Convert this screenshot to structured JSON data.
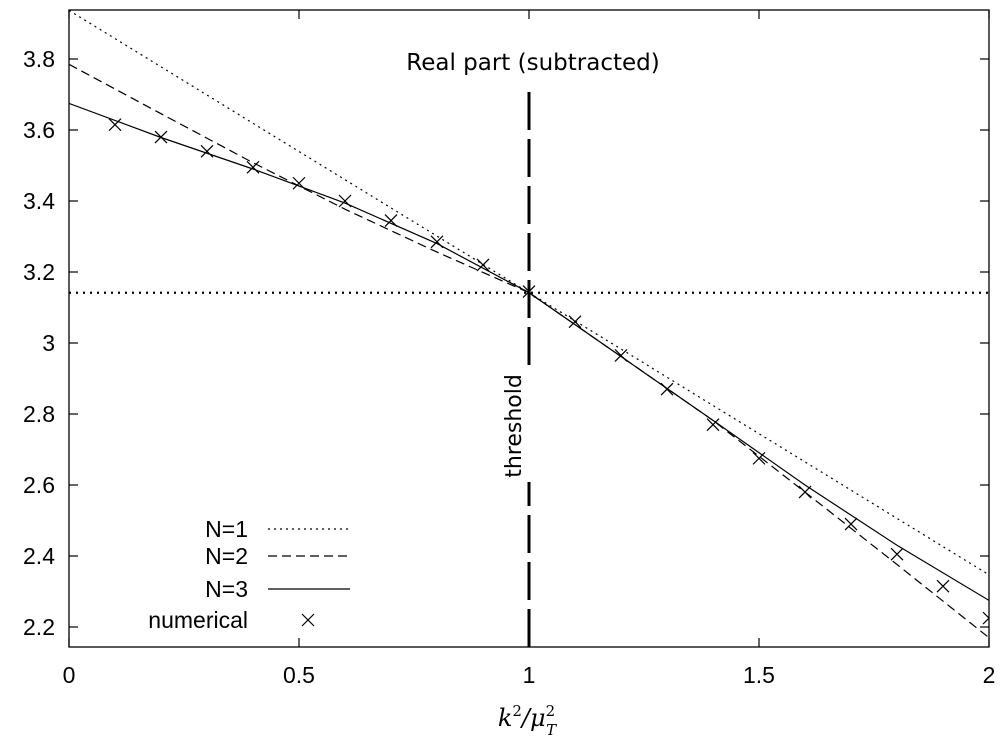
{
  "chart_data": {
    "type": "line",
    "title": "Real part (subtracted)",
    "xlabel": "k²/μ²_T",
    "ylabel": "",
    "xlim": [
      0,
      2
    ],
    "ylim": [
      2.15,
      3.95
    ],
    "xticks": [
      0,
      0.5,
      1,
      1.5,
      2
    ],
    "xtick_labels": [
      "0",
      "0.5",
      "1",
      "1.5",
      "2"
    ],
    "yticks": [
      2.2,
      2.4,
      2.6,
      2.8,
      3.0,
      3.2,
      3.4,
      3.6,
      3.8
    ],
    "ytick_labels": [
      "2.2",
      "2.4",
      "2.6",
      "2.8",
      "3",
      "3.2",
      "3.4",
      "3.6",
      "3.8"
    ],
    "grid": false,
    "legend_position": "bottom-left",
    "series": [
      {
        "name": "N=1",
        "style": "dotted",
        "x": [
          0,
          0.2,
          0.4,
          0.6,
          0.8,
          1.0,
          1.2,
          1.4,
          1.6,
          1.8,
          2.0
        ],
        "y": [
          3.937,
          3.778,
          3.619,
          3.46,
          3.301,
          3.1416,
          2.983,
          2.824,
          2.665,
          2.506,
          2.347
        ]
      },
      {
        "name": "N=2",
        "style": "dashed",
        "x": [
          0,
          0.2,
          0.4,
          0.6,
          0.8,
          1.0,
          1.2,
          1.4,
          1.6,
          1.8,
          2.0
        ],
        "y": [
          3.785,
          3.646,
          3.508,
          3.377,
          3.256,
          3.1416,
          2.962,
          2.782,
          2.58,
          2.376,
          2.17
        ]
      },
      {
        "name": "N=3",
        "style": "solid",
        "x": [
          0,
          0.2,
          0.4,
          0.6,
          0.8,
          1.0,
          1.2,
          1.4,
          1.6,
          1.8,
          2.0
        ],
        "y": [
          3.675,
          3.579,
          3.49,
          3.394,
          3.28,
          3.1416,
          2.962,
          2.782,
          2.6,
          2.43,
          2.275
        ]
      },
      {
        "name": "numerical",
        "style": "markers",
        "x": [
          0.1,
          0.2,
          0.3,
          0.4,
          0.5,
          0.6,
          0.7,
          0.8,
          0.9,
          1.0,
          1.1,
          1.2,
          1.3,
          1.4,
          1.5,
          1.6,
          1.7,
          1.8,
          1.9,
          2.0
        ],
        "y": [
          3.615,
          3.58,
          3.54,
          3.495,
          3.45,
          3.4,
          3.345,
          3.285,
          3.22,
          3.145,
          3.06,
          2.965,
          2.87,
          2.77,
          2.675,
          2.58,
          2.49,
          2.405,
          2.315,
          2.225
        ]
      }
    ],
    "reference_lines": [
      {
        "orientation": "horizontal",
        "value": 3.1416,
        "style": "dotted"
      },
      {
        "orientation": "vertical",
        "value": 1.0,
        "style": "long-dashed",
        "label": "threshold"
      }
    ]
  }
}
